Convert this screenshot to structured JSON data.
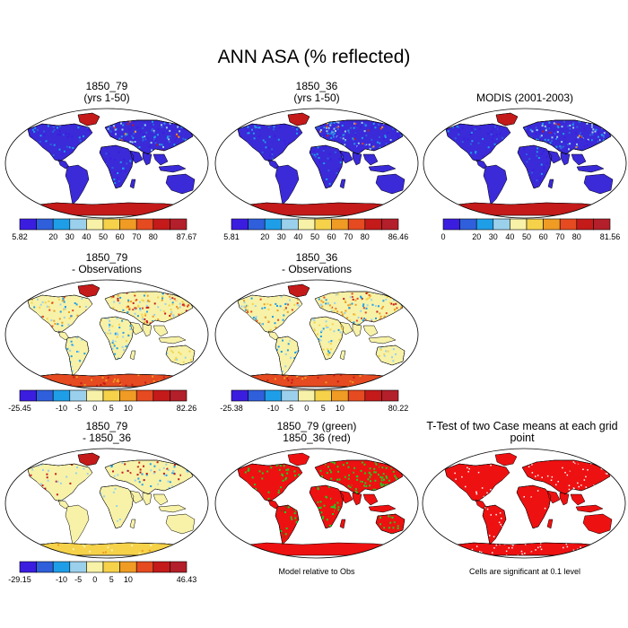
{
  "title": "ANN ASA (% reflected)",
  "colors": {
    "scale": [
      "#3b1de0",
      "#2f5fdb",
      "#1f9ee8",
      "#9bd0ec",
      "#f7f2a8",
      "#f6d24a",
      "#ef9b24",
      "#e54a20",
      "#c41a1a",
      "#b31f2a"
    ],
    "land_low": "#3a2ad8",
    "ocean": "#ffffff",
    "green": "#22cc22",
    "red": "#ee1111"
  },
  "chart_data": [
    {
      "type": "heatmap",
      "panel": "1850_79 (yrs 1-50)",
      "title_lines": [
        "1850_79",
        "(yrs 1-50)"
      ],
      "colorbar_labels": [
        "5.82",
        "20",
        "30",
        "40",
        "50",
        "60",
        "70",
        "80",
        "87.67"
      ],
      "range": [
        5.82,
        87.67
      ]
    },
    {
      "type": "heatmap",
      "panel": "1850_36 (yrs 1-50)",
      "title_lines": [
        "1850_36",
        "(yrs 1-50)"
      ],
      "colorbar_labels": [
        "5.81",
        "20",
        "30",
        "40",
        "50",
        "60",
        "70",
        "80",
        "86.46"
      ],
      "range": [
        5.81,
        86.46
      ]
    },
    {
      "type": "heatmap",
      "panel": "MODIS (2001-2003)",
      "title_lines": [
        "MODIS (2001-2003)"
      ],
      "colorbar_labels": [
        "0",
        "20",
        "30",
        "40",
        "50",
        "60",
        "70",
        "80",
        "81.56"
      ],
      "range": [
        0,
        81.56
      ]
    },
    {
      "type": "heatmap",
      "panel": "1850_79 - Observations",
      "title_lines": [
        "1850_79",
        "- Observations"
      ],
      "colorbar_labels": [
        "-25.45",
        "-10",
        "-5",
        "0",
        "5",
        "10",
        "82.26"
      ],
      "range": [
        -25.45,
        82.26
      ]
    },
    {
      "type": "heatmap",
      "panel": "1850_36 - Observations",
      "title_lines": [
        "1850_36",
        "- Observations"
      ],
      "colorbar_labels": [
        "-25.38",
        "-10",
        "-5",
        "0",
        "5",
        "10",
        "80.22"
      ],
      "range": [
        -25.38,
        80.22
      ]
    },
    {
      "type": "heatmap",
      "panel": "1850_79 - 1850_36",
      "title_lines": [
        "1850_79",
        "- 1850_36"
      ],
      "colorbar_labels": [
        "-29.15",
        "-10",
        "-5",
        "0",
        "5",
        "10",
        "46.43"
      ],
      "range": [
        -29.15,
        46.43
      ]
    },
    {
      "type": "heatmap",
      "panel": "1850_79 (green) 1850_36 (red)",
      "title_lines": [
        "1850_79 (green)",
        "1850_36 (red)"
      ],
      "caption": "Model relative to Obs"
    },
    {
      "type": "heatmap",
      "panel": "T-Test of two Case means at each grid point",
      "title_lines": [
        "T-Test of two Case means at each grid point"
      ],
      "caption": "Cells are significant at 0.1 level"
    }
  ]
}
